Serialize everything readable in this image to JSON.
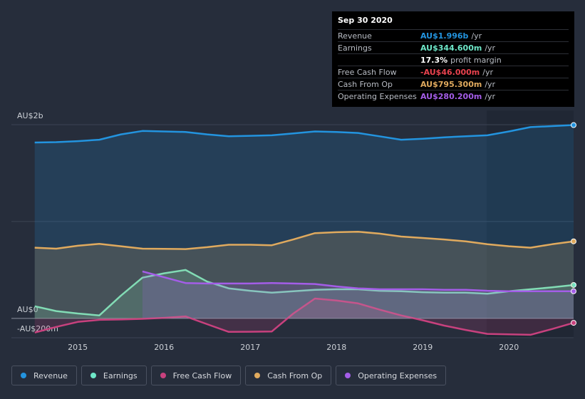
{
  "chart_data": {
    "type": "line",
    "x": [
      2014.5,
      2014.75,
      2015,
      2015.25,
      2015.5,
      2015.75,
      2016,
      2016.25,
      2016.5,
      2016.75,
      2017,
      2017.25,
      2017.5,
      2017.75,
      2018,
      2018.25,
      2018.5,
      2018.75,
      2019,
      2019.25,
      2019.5,
      2019.75,
      2020,
      2020.25,
      2020.5,
      2020.75
    ],
    "xlim": [
      2014.23,
      2020.75
    ],
    "xticks": [
      2015,
      2016,
      2017,
      2018,
      2019,
      2020
    ],
    "ylim": [
      -200,
      2000
    ],
    "yticks": [
      {
        "value": -200,
        "label": "-AU$200m"
      },
      {
        "value": 0,
        "label": "AU$0"
      },
      {
        "value": 1000,
        "label": null
      },
      {
        "value": 2000,
        "label": "AU$2b"
      }
    ],
    "series": [
      {
        "name": "Revenue",
        "color": "#2394df",
        "values": [
          1816,
          1820,
          1830,
          1845,
          1900,
          1935,
          1930,
          1925,
          1900,
          1880,
          1885,
          1890,
          1910,
          1930,
          1925,
          1915,
          1880,
          1845,
          1855,
          1870,
          1880,
          1890,
          1930,
          1975,
          1985,
          1996
        ]
      },
      {
        "name": "Earnings",
        "color": "#6ee7c8",
        "values": [
          125,
          75,
          50,
          30,
          235,
          420,
          465,
          500,
          380,
          310,
          285,
          265,
          280,
          295,
          300,
          300,
          285,
          280,
          270,
          265,
          265,
          255,
          280,
          300,
          320,
          344.6
        ]
      },
      {
        "name": "Free Cash Flow",
        "color": "#c8417e",
        "values": [
          -147,
          -88,
          -37,
          -15,
          -12,
          -5,
          5,
          20,
          -60,
          -140,
          -138,
          -135,
          50,
          205,
          185,
          155,
          90,
          30,
          -20,
          -75,
          -120,
          -160,
          -165,
          -170,
          -110,
          -46
        ]
      },
      {
        "name": "Cash From Op",
        "color": "#e0aa5e",
        "values": [
          730,
          720,
          750,
          770,
          745,
          720,
          718,
          715,
          735,
          760,
          760,
          755,
          815,
          880,
          890,
          895,
          875,
          845,
          830,
          815,
          795,
          765,
          745,
          730,
          765,
          795.3
        ]
      },
      {
        "name": "Operating Expenses",
        "color": "#a45de8",
        "values": [
          null,
          null,
          null,
          null,
          null,
          485,
          425,
          365,
          360,
          360,
          360,
          365,
          360,
          355,
          330,
          310,
          300,
          300,
          300,
          295,
          295,
          285,
          280,
          280,
          280,
          280.2
        ]
      }
    ],
    "tooltip": {
      "date": "Sep 30 2020",
      "rows": [
        {
          "label": "Revenue",
          "value": "AU$1.996b",
          "unit": "/yr"
        },
        {
          "label": "Earnings",
          "value": "AU$344.600m",
          "unit": "/yr"
        },
        {
          "label": null,
          "value": "17.3%",
          "unit": "profit margin"
        },
        {
          "label": "Free Cash Flow",
          "value": "-AU$46.000m",
          "unit": "/yr"
        },
        {
          "label": "Cash From Op",
          "value": "AU$795.300m",
          "unit": "/yr"
        },
        {
          "label": "Operating Expenses",
          "value": "AU$280.200m",
          "unit": "/yr"
        }
      ]
    }
  }
}
